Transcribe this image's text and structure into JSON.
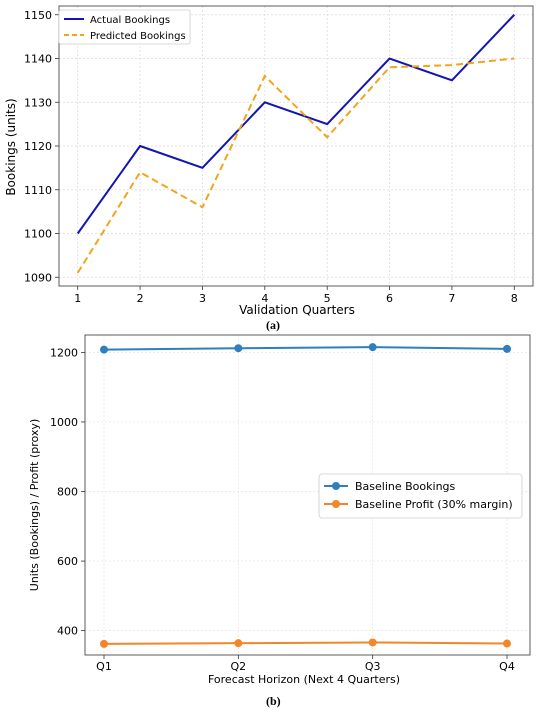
{
  "figures": {
    "a_caption": "(a)",
    "b_caption": "(b)"
  },
  "chart_data": [
    {
      "type": "line",
      "title": "",
      "xlabel": "Validation Quarters",
      "ylabel": "Bookings (units)",
      "x": [
        1,
        2,
        3,
        4,
        5,
        6,
        7,
        8
      ],
      "x_tick_labels": [
        "1",
        "2",
        "3",
        "4",
        "5",
        "6",
        "7",
        "8"
      ],
      "y_ticks": [
        1090,
        1100,
        1110,
        1120,
        1130,
        1140,
        1150
      ],
      "xlim": [
        0.7,
        8.3
      ],
      "ylim": [
        1088,
        1152
      ],
      "grid": true,
      "legend_position": "top-left",
      "series": [
        {
          "name": "Actual Bookings",
          "color": "#1515b0",
          "dash": "solid",
          "values": [
            1100,
            1120,
            1115,
            1130,
            1125,
            1140,
            1135,
            1150
          ]
        },
        {
          "name": "Predicted Bookings",
          "color": "#f0a51c",
          "dash": "dashed",
          "values": [
            1091,
            1114,
            1106,
            1136,
            1122,
            1138,
            1138.5,
            1140
          ]
        }
      ]
    },
    {
      "type": "line",
      "title": "",
      "xlabel": "Forecast Horizon (Next 4 Quarters)",
      "ylabel": "Units (Bookings) / Profit (proxy)",
      "categories": [
        "Q1",
        "Q2",
        "Q3",
        "Q4"
      ],
      "y_ticks": [
        400,
        600,
        800,
        1000,
        1200
      ],
      "ylim": [
        330,
        1250
      ],
      "grid": true,
      "legend_position": "center-right",
      "series": [
        {
          "name": "Baseline Bookings",
          "color": "#2f7fbf",
          "marker": "circle",
          "values": [
            1208,
            1212,
            1215,
            1210
          ]
        },
        {
          "name": "Baseline Profit (30% margin)",
          "color": "#f3862a",
          "marker": "circle",
          "values": [
            362,
            364,
            366,
            363
          ]
        }
      ]
    }
  ]
}
